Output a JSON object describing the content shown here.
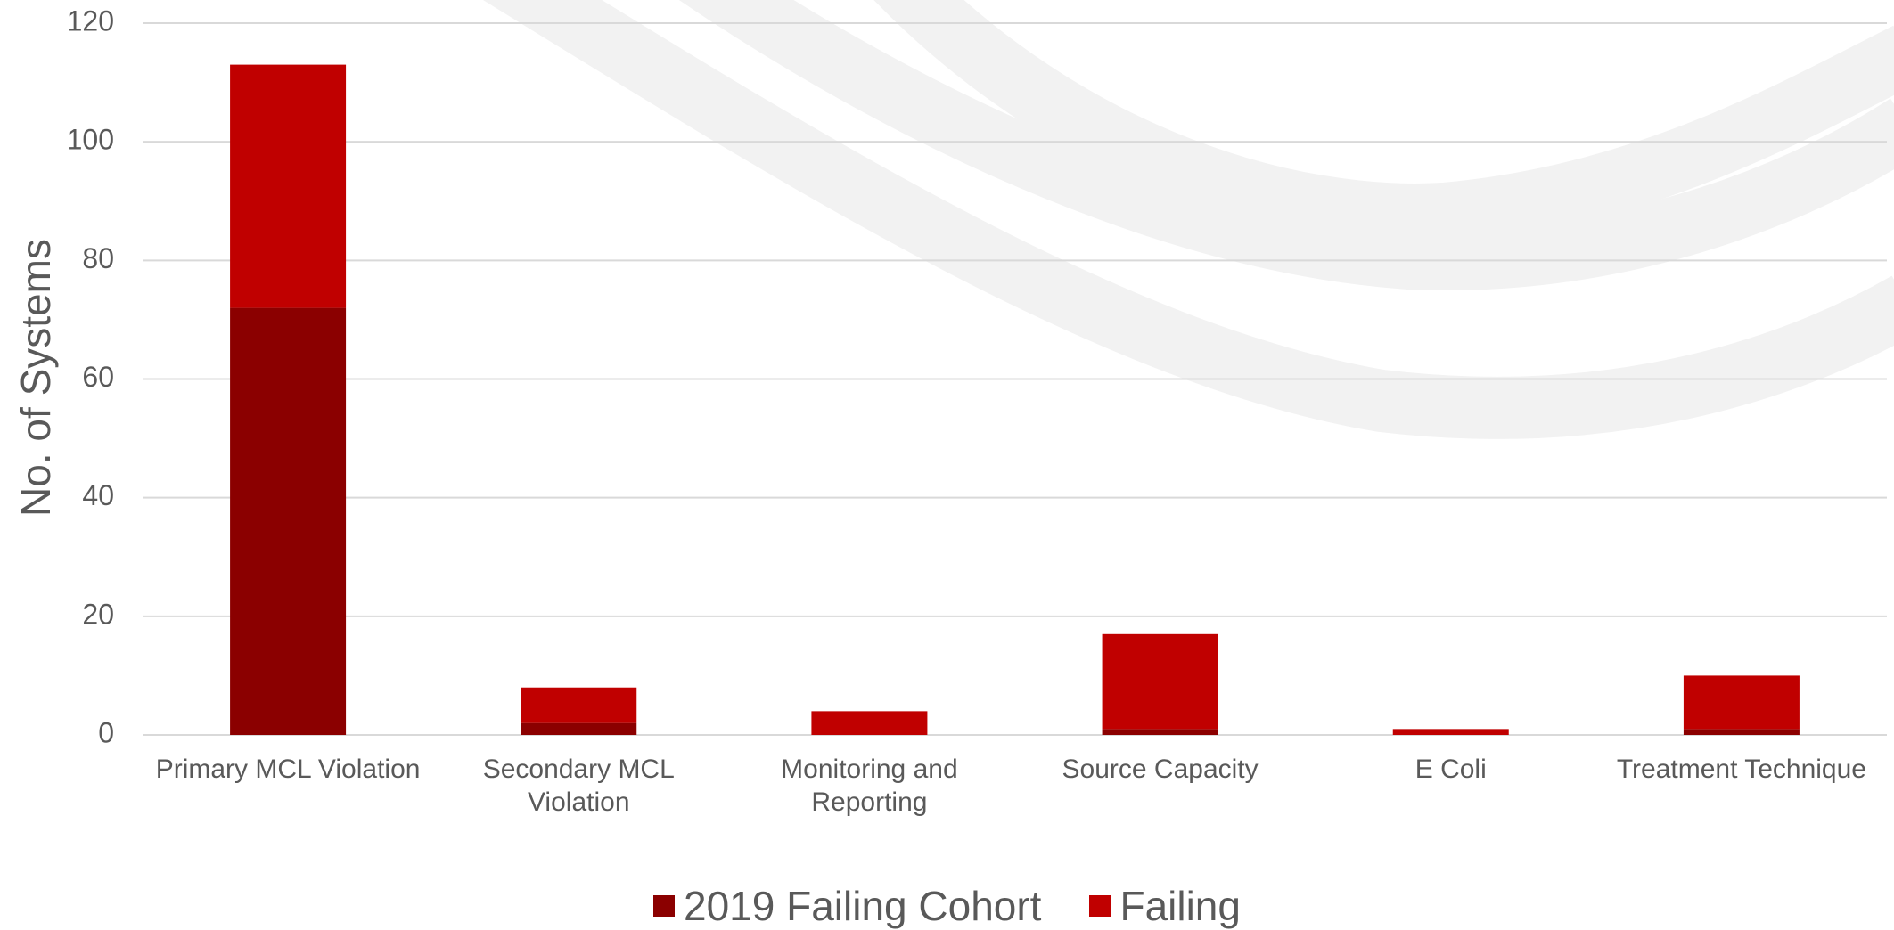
{
  "chart_data": {
    "type": "stacked_bar",
    "y_label": "No. of Systems",
    "categories": [
      "Primary MCL Violation",
      "Secondary MCL Violation",
      "Monitoring and Reporting",
      "Source Capacity",
      "E Coli",
      "Treatment Technique"
    ],
    "series": [
      {
        "name": "2019 Failing Cohort",
        "color": "#8b0000",
        "values": [
          72,
          2,
          0,
          1,
          0,
          1
        ]
      },
      {
        "name": "Failing",
        "color": "#c00000",
        "values": [
          41,
          6,
          4,
          16,
          1,
          9
        ]
      }
    ],
    "ylim": [
      0,
      120
    ],
    "yticks": [
      0,
      20,
      40,
      60,
      80,
      100,
      120
    ],
    "grid": true,
    "legend": "bottom"
  }
}
